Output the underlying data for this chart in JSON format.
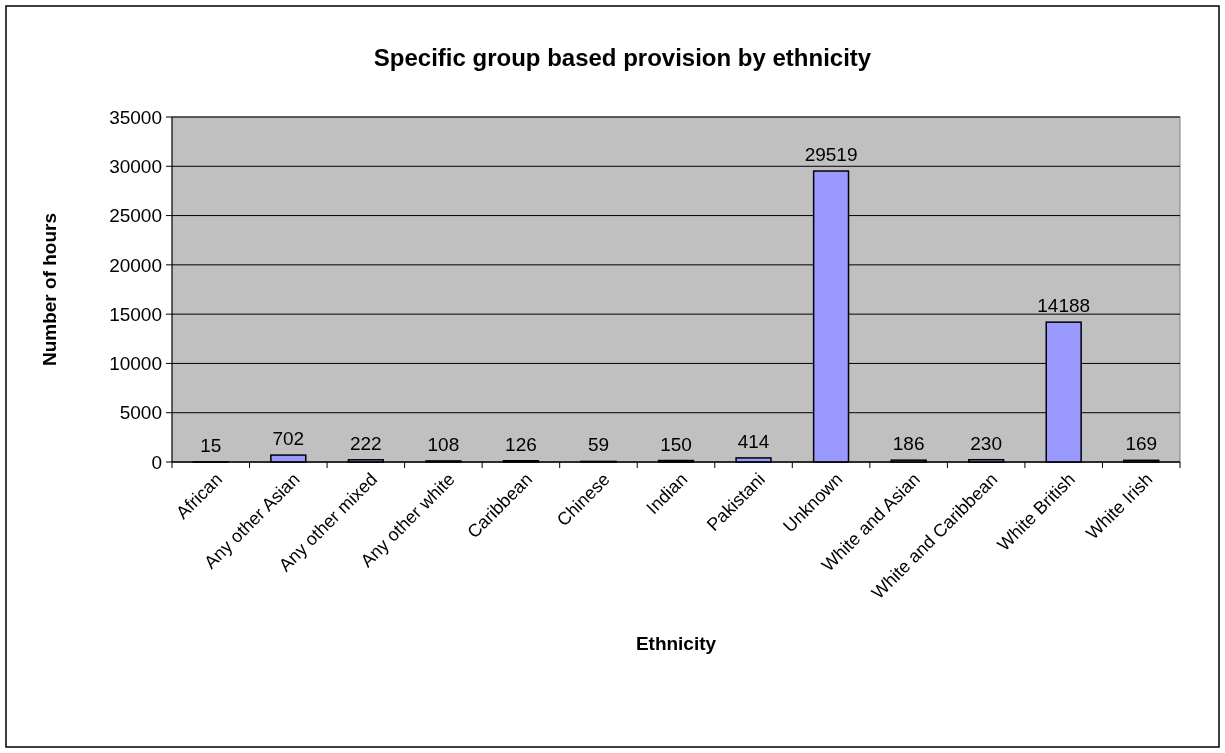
{
  "chart_data": {
    "type": "bar",
    "title": "Specific group based provision by ethnicity",
    "xlabel": "Ethnicity",
    "ylabel": "Number of hours",
    "categories": [
      "African",
      "Any other Asian",
      "Any other mixed",
      "Any other white",
      "Caribbean",
      "Chinese",
      "Indian",
      "Pakistani",
      "Unknown",
      "White and Asian",
      "White and Caribbean",
      "White British",
      "White Irish"
    ],
    "values": [
      15,
      702,
      222,
      108,
      126,
      59,
      150,
      414,
      29519,
      186,
      230,
      14188,
      169
    ],
    "color": "#9999ff",
    "ylim": [
      0,
      35000
    ],
    "yticks": [
      0,
      5000,
      10000,
      15000,
      20000,
      25000,
      30000,
      35000
    ],
    "grid": "y",
    "data_labels": true
  }
}
